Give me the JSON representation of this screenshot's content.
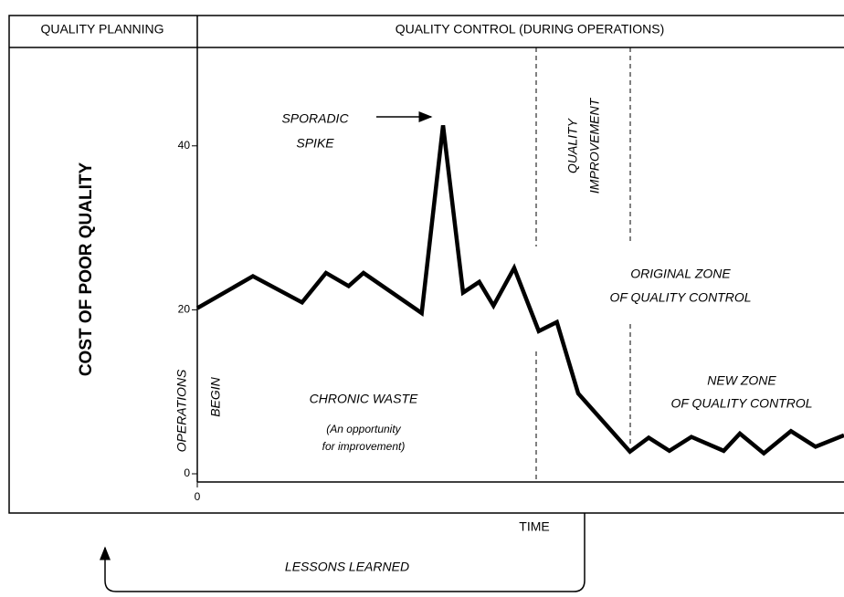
{
  "chart_data": {
    "type": "line",
    "header": [
      "QUALITY PLANNING",
      "QUALITY CONTROL (DURING OPERATIONS)"
    ],
    "y_label": "COST OF POOR QUALITY",
    "x_label": "TIME",
    "x": [
      0,
      8.6,
      16.2,
      19.9,
      23.4,
      25.7,
      34.7,
      38,
      41.1,
      43.6,
      45.8,
      49,
      52.8,
      55.6,
      58.9,
      66.9,
      69.8,
      73,
      76.4,
      81.4,
      83.9,
      87.6,
      91.8,
      95.6,
      100
    ],
    "series": [
      {
        "color": "#000000",
        "values": [
          20.2,
          24.1,
          20.9,
          24.5,
          22.9,
          24.5,
          19.6,
          42.5,
          22.1,
          23.4,
          20.5,
          25.1,
          17.4,
          18.5,
          9.8,
          2.7,
          4.4,
          2.8,
          4.5,
          2.8,
          4.9,
          2.5,
          5.2,
          3.3,
          4.7
        ]
      }
    ],
    "xlim": [
      0,
      100
    ],
    "xticks": [
      0
    ],
    "ylim": [
      -1,
      52
    ],
    "yticks": [
      0,
      20,
      40
    ],
    "annotations": [
      {
        "lines": [
          "SPORADIC",
          "SPIKE"
        ]
      },
      {
        "lines": [
          "QUALITY",
          "IMPROVEMENT"
        ]
      },
      {
        "lines": [
          "ORIGINAL ZONE",
          "OF QUALITY CONTROL"
        ]
      },
      {
        "lines": [
          "NEW ZONE",
          "OF QUALITY CONTROL"
        ]
      },
      {
        "lines": [
          "CHRONIC WASTE"
        ]
      },
      {
        "lines": [
          "(An opportunity",
          "for improvement)"
        ]
      },
      {
        "lines": [
          "OPERATIONS",
          "BEGIN"
        ]
      },
      {
        "lines": [
          "LESSONS LEARNED"
        ]
      }
    ]
  }
}
